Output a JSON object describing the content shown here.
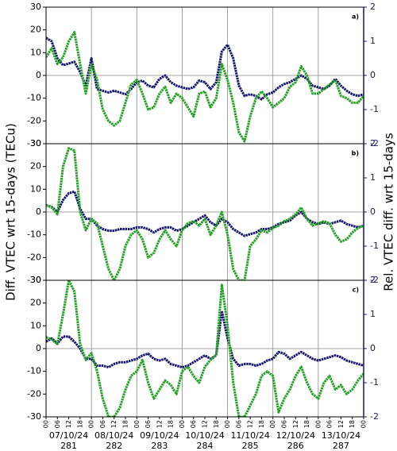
{
  "chart_data": [
    {
      "type": "line",
      "label": "a)",
      "x": [
        0,
        3,
        6,
        9,
        12,
        15,
        18,
        21,
        24,
        27,
        30,
        33,
        36,
        39,
        42,
        45,
        48,
        51,
        54,
        57,
        60,
        63,
        66,
        69,
        72,
        75,
        78,
        81,
        84,
        87,
        90,
        93,
        96,
        99,
        102,
        105,
        108,
        111,
        114,
        117,
        120,
        123,
        126,
        129,
        132,
        135,
        138,
        141,
        144,
        147,
        150,
        153,
        156,
        159,
        162,
        165,
        168
      ],
      "xlim": [
        0,
        168
      ],
      "ylim": [
        -30,
        30
      ],
      "yticks": [
        -30,
        -20,
        -10,
        0,
        10,
        20,
        30
      ],
      "y2lim": [
        -2,
        2
      ],
      "y2ticks": [
        -2,
        -1,
        0,
        1,
        2
      ],
      "series": [
        {
          "name": "Rel. VTEC diff.",
          "color": "#14146e",
          "axis": "y2",
          "values": [
            1.1,
            1.0,
            0.5,
            0.3,
            0.35,
            0.4,
            0.1,
            -0.3,
            0.5,
            -0.4,
            -0.45,
            -0.5,
            -0.45,
            -0.5,
            -0.55,
            -0.4,
            -0.2,
            -0.15,
            -0.3,
            -0.35,
            -0.1,
            0,
            -0.2,
            -0.3,
            -0.35,
            -0.4,
            -0.35,
            -0.15,
            -0.2,
            -0.4,
            -0.2,
            0.7,
            0.9,
            0.5,
            -0.3,
            -0.6,
            -0.55,
            -0.6,
            -0.7,
            -0.55,
            -0.5,
            -0.35,
            -0.25,
            -0.2,
            -0.1,
            0,
            -0.1,
            -0.3,
            -0.35,
            -0.4,
            -0.3,
            -0.1,
            -0.3,
            -0.45,
            -0.55,
            -0.6,
            -0.55
          ]
        },
        {
          "name": "Diff. VTEC",
          "color": "#22a022",
          "values": [
            8,
            12,
            5,
            8,
            15,
            19,
            5,
            -8,
            5,
            -2,
            -15,
            -20,
            -22,
            -20,
            -12,
            -4,
            -2,
            -8,
            -15,
            -14,
            -8,
            -5,
            -12,
            -8,
            -10,
            -14,
            -18,
            -8,
            -7,
            -14,
            -10,
            5,
            -2,
            -12,
            -25,
            -29,
            -18,
            -10,
            -7,
            -10,
            -14,
            -12,
            -10,
            -5,
            -3,
            4,
            0,
            -8,
            -8,
            -6,
            -4,
            -2,
            -9,
            -10,
            -12,
            -12,
            -9
          ]
        }
      ]
    },
    {
      "type": "line",
      "label": "b)",
      "ylabel": "Diff. VTEC wrt 15-days (TECu)",
      "y2label": "Rel. VTEC diff. wrt 15-days",
      "x": [
        0,
        3,
        6,
        9,
        12,
        15,
        18,
        21,
        24,
        27,
        30,
        33,
        36,
        39,
        42,
        45,
        48,
        51,
        54,
        57,
        60,
        63,
        66,
        69,
        72,
        75,
        78,
        81,
        84,
        87,
        90,
        93,
        96,
        99,
        102,
        105,
        108,
        111,
        114,
        117,
        120,
        123,
        126,
        129,
        132,
        135,
        138,
        141,
        144,
        147,
        150,
        153,
        156,
        159,
        162,
        165,
        168
      ],
      "xlim": [
        0,
        168
      ],
      "ylim": [
        -30,
        30
      ],
      "yticks": [
        -30,
        -20,
        -10,
        0,
        10,
        20,
        30
      ],
      "y2lim": [
        -2,
        2
      ],
      "y2ticks": [
        -2,
        -1,
        0,
        1,
        2
      ],
      "series": [
        {
          "name": "Rel. VTEC diff.",
          "color": "#14146e",
          "axis": "y2",
          "values": [
            0.2,
            0.15,
            0,
            0.35,
            0.55,
            0.6,
            0.1,
            -0.2,
            -0.2,
            -0.4,
            -0.5,
            -0.55,
            -0.55,
            -0.5,
            -0.5,
            -0.5,
            -0.45,
            -0.45,
            -0.5,
            -0.6,
            -0.5,
            -0.45,
            -0.45,
            -0.55,
            -0.5,
            -0.4,
            -0.3,
            -0.2,
            -0.1,
            -0.3,
            -0.4,
            -0.2,
            -0.3,
            -0.5,
            -0.6,
            -0.7,
            -0.65,
            -0.6,
            -0.5,
            -0.5,
            -0.45,
            -0.35,
            -0.3,
            -0.25,
            -0.1,
            0,
            -0.2,
            -0.3,
            -0.35,
            -0.3,
            -0.35,
            -0.3,
            -0.25,
            -0.35,
            -0.4,
            -0.45,
            -0.4
          ]
        },
        {
          "name": "Diff. VTEC",
          "color": "#22a022",
          "values": [
            3,
            2,
            -1,
            20,
            28,
            27,
            0,
            -8,
            -3,
            -5,
            -15,
            -25,
            -30,
            -25,
            -15,
            -10,
            -8,
            -12,
            -20,
            -18,
            -12,
            -8,
            -12,
            -15,
            -8,
            -5,
            -4,
            -6,
            -3,
            -10,
            -6,
            0,
            -10,
            -25,
            -30,
            -30,
            -15,
            -12,
            -8,
            -9,
            -7,
            -6,
            -4,
            -3,
            -1,
            2,
            -3,
            -6,
            -5,
            -4,
            -5,
            -10,
            -13,
            -12,
            -9,
            -7,
            -6
          ]
        }
      ]
    },
    {
      "type": "line",
      "label": "c)",
      "x": [
        0,
        3,
        6,
        9,
        12,
        15,
        18,
        21,
        24,
        27,
        30,
        33,
        36,
        39,
        42,
        45,
        48,
        51,
        54,
        57,
        60,
        63,
        66,
        69,
        72,
        75,
        78,
        81,
        84,
        87,
        90,
        93,
        96,
        99,
        102,
        105,
        108,
        111,
        114,
        117,
        120,
        123,
        126,
        129,
        132,
        135,
        138,
        141,
        144,
        147,
        150,
        153,
        156,
        159,
        162,
        165,
        168
      ],
      "xlim": [
        0,
        168
      ],
      "ylim": [
        -30,
        30
      ],
      "yticks": [
        -30,
        -20,
        -10,
        0,
        10,
        20,
        30
      ],
      "y2lim": [
        -2,
        2
      ],
      "y2ticks": [
        -2,
        -1,
        0,
        1,
        2
      ],
      "xticks": [
        {
          "value": 0,
          "label": "00"
        },
        {
          "value": 6,
          "label": "06"
        },
        {
          "value": 12,
          "label": "12"
        },
        {
          "value": 18,
          "label": "18"
        },
        {
          "value": 24,
          "label": "00"
        },
        {
          "value": 30,
          "label": "06"
        },
        {
          "value": 36,
          "label": "12"
        },
        {
          "value": 42,
          "label": "18"
        },
        {
          "value": 48,
          "label": "00"
        },
        {
          "value": 54,
          "label": "06"
        },
        {
          "value": 60,
          "label": "12"
        },
        {
          "value": 66,
          "label": "18"
        },
        {
          "value": 72,
          "label": "00"
        },
        {
          "value": 78,
          "label": "06"
        },
        {
          "value": 84,
          "label": "12"
        },
        {
          "value": 90,
          "label": "18"
        },
        {
          "value": 96,
          "label": "00"
        },
        {
          "value": 102,
          "label": "06"
        },
        {
          "value": 108,
          "label": "12"
        },
        {
          "value": 114,
          "label": "18"
        },
        {
          "value": 120,
          "label": "00"
        },
        {
          "value": 126,
          "label": "06"
        },
        {
          "value": 132,
          "label": "12"
        },
        {
          "value": 138,
          "label": "18"
        },
        {
          "value": 144,
          "label": "00"
        },
        {
          "value": 150,
          "label": "06"
        },
        {
          "value": 156,
          "label": "12"
        },
        {
          "value": 162,
          "label": "18"
        },
        {
          "value": 168,
          "label": "00"
        }
      ],
      "day_labels": [
        "07/10/24",
        "08/10/24",
        "09/10/24",
        "10/10/24",
        "11/10/24",
        "12/10/24",
        "13/10/24"
      ],
      "doy_labels": [
        "281",
        "282",
        "283",
        "284",
        "285",
        "286",
        "287"
      ],
      "series": [
        {
          "name": "Rel. VTEC diff.",
          "color": "#14146e",
          "axis": "y2",
          "values": [
            0.2,
            0.3,
            0.15,
            0.35,
            0.35,
            0.2,
            0,
            -0.3,
            -0.3,
            -0.5,
            -0.5,
            -0.55,
            -0.45,
            -0.4,
            -0.4,
            -0.35,
            -0.3,
            -0.2,
            -0.15,
            -0.3,
            -0.35,
            -0.3,
            -0.45,
            -0.5,
            -0.55,
            -0.5,
            -0.4,
            -0.3,
            -0.2,
            -0.3,
            -0.2,
            1.1,
            0.3,
            -0.3,
            -0.5,
            -0.45,
            -0.45,
            -0.5,
            -0.45,
            -0.35,
            -0.3,
            -0.1,
            -0.15,
            -0.3,
            -0.2,
            -0.1,
            -0.2,
            -0.3,
            -0.35,
            -0.3,
            -0.25,
            -0.2,
            -0.25,
            -0.35,
            -0.4,
            -0.45,
            -0.5
          ]
        },
        {
          "name": "Diff. VTEC",
          "color": "#22a022",
          "values": [
            5,
            4,
            2,
            15,
            30,
            25,
            2,
            -5,
            -2,
            -10,
            -22,
            -30,
            -30,
            -26,
            -18,
            -12,
            -10,
            -5,
            -15,
            -22,
            -18,
            -14,
            -16,
            -20,
            -10,
            -8,
            -12,
            -15,
            -8,
            -5,
            -3,
            28,
            10,
            -15,
            -30,
            -30,
            -25,
            -20,
            -12,
            -10,
            -12,
            -28,
            -22,
            -18,
            -12,
            -8,
            -15,
            -20,
            -22,
            -15,
            -12,
            -18,
            -16,
            -20,
            -18,
            -14,
            -11
          ]
        }
      ]
    }
  ]
}
